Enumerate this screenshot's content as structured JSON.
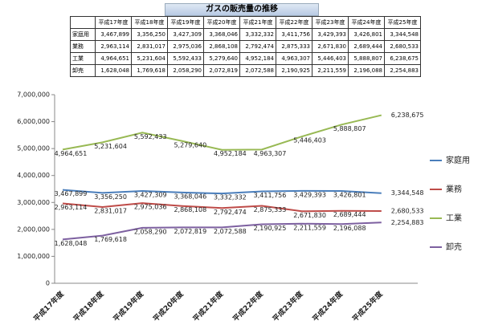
{
  "chart_data": {
    "type": "line",
    "title": "ガスの販売量の推移",
    "categories": [
      "平成17年度",
      "平成18年度",
      "平成19年度",
      "平成20年度",
      "平成21年度",
      "平成22年度",
      "平成23年度",
      "平成24年度",
      "平成25年度"
    ],
    "series": [
      {
        "name": "家庭用",
        "color": "#4a7ebb",
        "values": [
          3467899,
          3356250,
          3427309,
          3368046,
          3332332,
          3411756,
          3429393,
          3426801,
          3344548
        ],
        "value_labels": [
          "3,467,899",
          "3,356,250",
          "3,427,309",
          "3,368,046",
          "3,332,332",
          "3,411,756",
          "3,429,393",
          "3,426,801",
          "3,344,548"
        ]
      },
      {
        "name": "業務",
        "color": "#be4b48",
        "values": [
          2963114,
          2831017,
          2975036,
          2868108,
          2792474,
          2875333,
          2671830,
          2689444,
          2680533
        ],
        "value_labels": [
          "2,963,114",
          "2,831,017",
          "2,975,036",
          "2,868,108",
          "2,792,474",
          "2,875,333",
          "2,671,830",
          "2,689,444",
          "2,680,533"
        ]
      },
      {
        "name": "工業",
        "color": "#98b954",
        "values": [
          4964651,
          5231604,
          5592433,
          5279640,
          4952184,
          4963307,
          5446403,
          5888807,
          6238675
        ],
        "value_labels": [
          "4,964,651",
          "5,231,604",
          "5,592,433",
          "5,279,640",
          "4,952,184",
          "4,963,307",
          "5,446,403",
          "5,888,807",
          "6,238,675"
        ]
      },
      {
        "name": "卸売",
        "color": "#7d60a0",
        "values": [
          1628048,
          1769618,
          2058290,
          2072819,
          2072588,
          2190925,
          2211559,
          2196088,
          2254883
        ],
        "value_labels": [
          "1,628,048",
          "1,769,618",
          "2,058,290",
          "2,072,819",
          "2,072,588",
          "2,190,925",
          "2,211,559",
          "2,196,088",
          "2,254,883"
        ]
      }
    ],
    "ylim": [
      0,
      7000000
    ],
    "yticks": [
      0,
      {
        "value": 1000000,
        "label": "1,000,000"
      },
      {
        "value": 2000000,
        "label": "2,000,000"
      },
      {
        "value": 3000000,
        "label": "3,000,000"
      },
      {
        "value": 4000000,
        "label": "4,000,000"
      },
      {
        "value": 5000000,
        "label": "5,000,000"
      },
      {
        "value": 6000000,
        "label": "6,000,000"
      },
      {
        "value": 7000000,
        "label": "7,000,000"
      }
    ],
    "legend": "right"
  }
}
